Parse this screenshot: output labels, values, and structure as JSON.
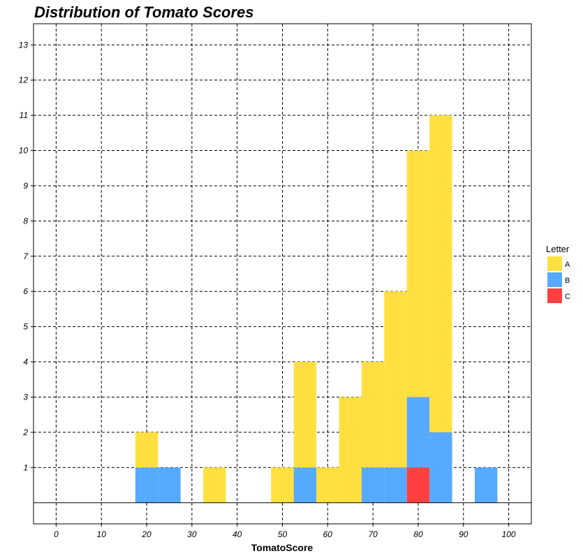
{
  "chart_data": {
    "type": "bar",
    "stacked": true,
    "title": "Distribution of Tomato Scores",
    "xlabel": "TomatoScore",
    "ylabel": "",
    "xlim": [
      -5,
      105
    ],
    "ylim": [
      -0.6,
      13.6
    ],
    "x_ticks": [
      0,
      10,
      20,
      30,
      40,
      50,
      60,
      70,
      80,
      90,
      100
    ],
    "y_ticks": [
      1,
      2,
      3,
      4,
      5,
      6,
      7,
      8,
      9,
      10,
      11,
      12,
      13
    ],
    "bin_width": 5,
    "bins": [
      20,
      25,
      35,
      50,
      55,
      60,
      65,
      70,
      75,
      80,
      85,
      95
    ],
    "grid": true,
    "legend": {
      "title": "Letter",
      "position": "right"
    },
    "series": [
      {
        "name": "C",
        "color": "#FF4040",
        "values": [
          0,
          0,
          0,
          0,
          0,
          0,
          0,
          0,
          0,
          1,
          0,
          0
        ]
      },
      {
        "name": "B",
        "color": "#56AAFF",
        "values": [
          1,
          1,
          0,
          0,
          1,
          0,
          0,
          1,
          1,
          2,
          2,
          1
        ]
      },
      {
        "name": "A",
        "color": "#FFE040",
        "values": [
          1,
          0,
          1,
          1,
          3,
          1,
          3,
          3,
          5,
          7,
          9,
          0
        ]
      }
    ],
    "legend_order": [
      "A",
      "B",
      "C"
    ]
  }
}
